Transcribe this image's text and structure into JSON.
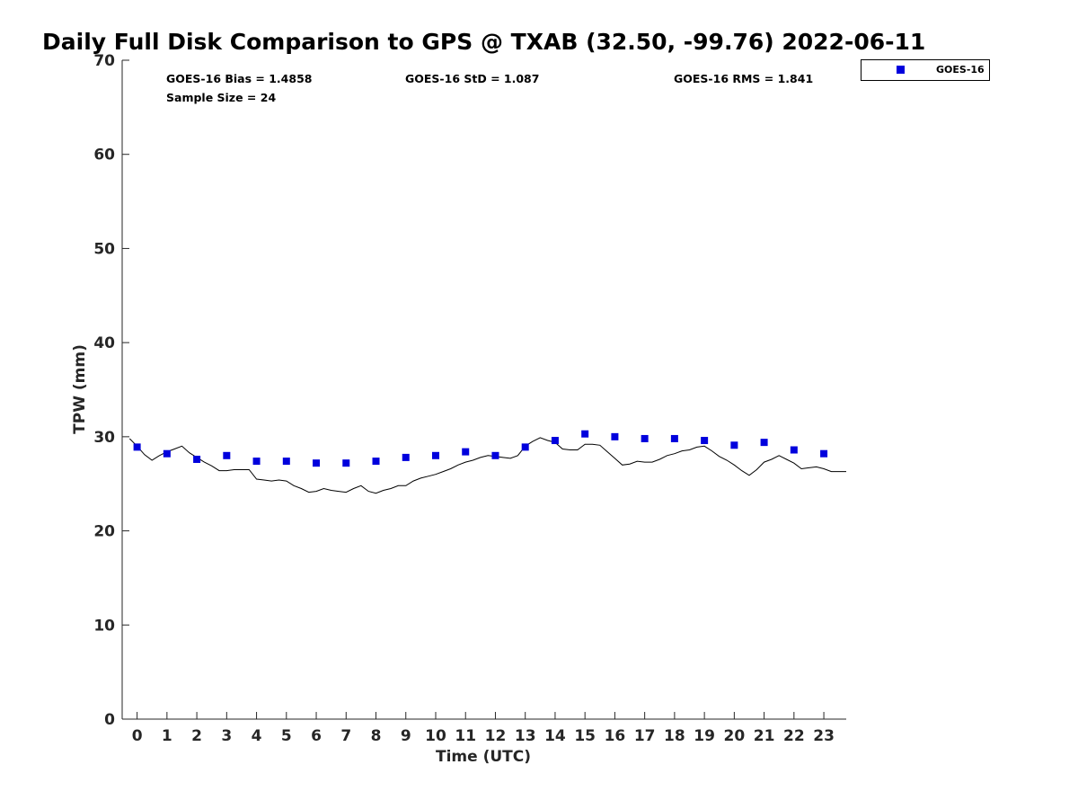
{
  "chart_data": {
    "type": "scatter",
    "title": "Daily Full Disk Comparison to GPS @ TXAB (32.50, -99.76) 2022-06-11",
    "xlabel": "Time (UTC)",
    "ylabel": "TPW (mm)",
    "xlim": [
      -0.5,
      23.75
    ],
    "ylim": [
      0,
      70
    ],
    "x_ticks": [
      0,
      1,
      2,
      3,
      4,
      5,
      6,
      7,
      8,
      9,
      10,
      11,
      12,
      13,
      14,
      15,
      16,
      17,
      18,
      19,
      20,
      21,
      22,
      23
    ],
    "y_ticks": [
      0,
      10,
      20,
      30,
      40,
      50,
      60,
      70
    ],
    "stats": {
      "bias": "GOES-16 Bias = 1.4858",
      "std": "GOES-16 StD = 1.087",
      "rms": "GOES-16 RMS = 1.841",
      "sample_size": "Sample Size = 24"
    },
    "legend": {
      "placement": "top-right, outside plot",
      "entries": [
        "GOES-16"
      ]
    },
    "series": [
      {
        "name": "GOES-16",
        "kind": "markers",
        "color": "#0000dd",
        "x": [
          0,
          1,
          2,
          3,
          4,
          5,
          6,
          7,
          8,
          9,
          10,
          11,
          12,
          13,
          14,
          15,
          16,
          17,
          18,
          19,
          20,
          21,
          22,
          23
        ],
        "y": [
          28.9,
          28.2,
          27.6,
          28.0,
          27.4,
          27.4,
          27.2,
          27.2,
          27.4,
          27.8,
          28.0,
          28.4,
          28.0,
          28.9,
          29.6,
          30.3,
          30.0,
          29.8,
          29.8,
          29.6,
          29.1,
          29.4,
          28.6,
          28.2
        ]
      },
      {
        "kind": "line",
        "color": "#000000",
        "x": [
          -0.25,
          0,
          0.25,
          0.5,
          0.75,
          1,
          1.25,
          1.5,
          1.75,
          2,
          2.25,
          2.5,
          2.75,
          3,
          3.25,
          3.5,
          3.75,
          4,
          4.25,
          4.5,
          4.75,
          5,
          5.25,
          5.5,
          5.75,
          6,
          6.25,
          6.5,
          6.75,
          7,
          7.25,
          7.5,
          7.75,
          8,
          8.25,
          8.5,
          8.75,
          9,
          9.25,
          9.5,
          9.75,
          10,
          10.25,
          10.5,
          10.75,
          11,
          11.25,
          11.5,
          11.75,
          12,
          12.25,
          12.5,
          12.75,
          13,
          13.25,
          13.5,
          13.75,
          14,
          14.25,
          14.5,
          14.75,
          15,
          15.25,
          15.5,
          15.75,
          16,
          16.25,
          16.5,
          16.75,
          17,
          17.25,
          17.5,
          17.75,
          18,
          18.25,
          18.5,
          18.75,
          19,
          19.25,
          19.5,
          19.75,
          20,
          20.25,
          20.5,
          20.75,
          21,
          21.25,
          21.5,
          21.75,
          22,
          22.25,
          22.5,
          22.75,
          23,
          23.25,
          23.5,
          23.75
        ],
        "y": [
          29.8,
          29.0,
          28.1,
          27.5,
          28.0,
          28.4,
          28.7,
          29.0,
          28.3,
          27.8,
          27.3,
          26.9,
          26.4,
          26.4,
          26.5,
          26.5,
          26.5,
          25.5,
          25.4,
          25.3,
          25.4,
          25.3,
          24.8,
          24.5,
          24.1,
          24.2,
          24.5,
          24.3,
          24.2,
          24.1,
          24.5,
          24.8,
          24.2,
          24.0,
          24.3,
          24.5,
          24.8,
          24.8,
          25.3,
          25.6,
          25.8,
          26.0,
          26.3,
          26.6,
          27.0,
          27.3,
          27.5,
          27.8,
          28.0,
          27.9,
          27.8,
          27.7,
          28.0,
          29.0,
          29.5,
          29.9,
          29.6,
          29.4,
          28.7,
          28.6,
          28.6,
          29.2,
          29.2,
          29.1,
          28.4,
          27.7,
          27.0,
          27.1,
          27.4,
          27.3,
          27.3,
          27.6,
          28.0,
          28.2,
          28.5,
          28.6,
          28.9,
          29.0,
          28.5,
          27.9,
          27.5,
          27.0,
          26.4,
          25.9,
          26.5,
          27.3,
          27.6,
          28.0,
          27.6,
          27.2,
          26.6,
          26.7,
          26.8,
          26.6,
          26.3,
          26.3,
          26.3
        ]
      }
    ]
  }
}
